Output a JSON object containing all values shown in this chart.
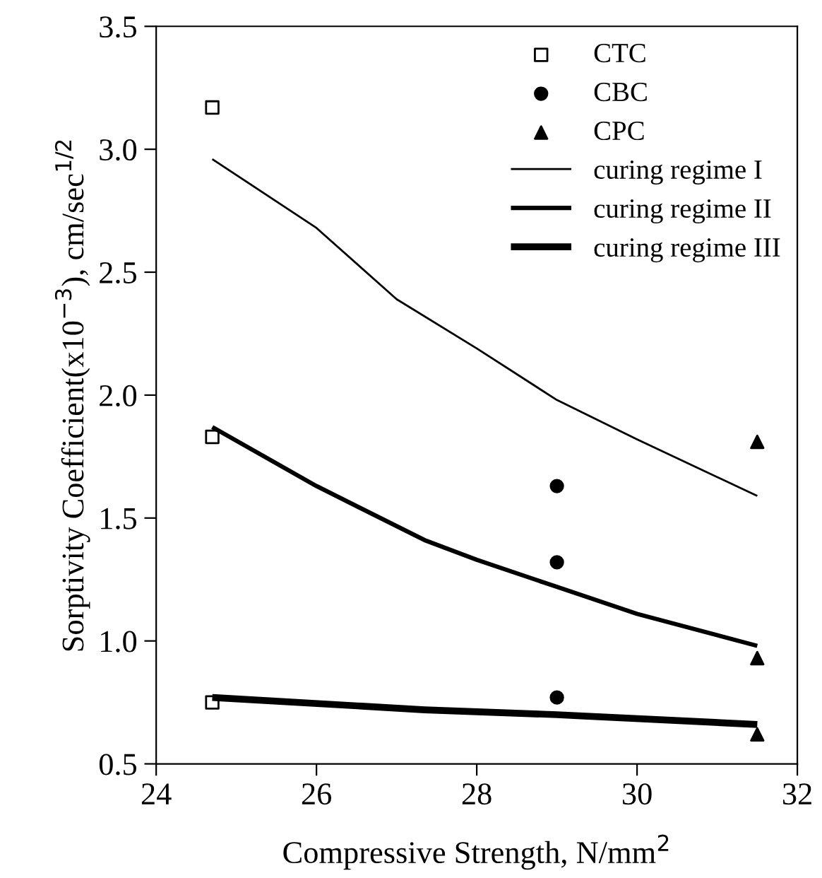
{
  "chart_data": {
    "type": "scatter",
    "xlabel": "Compressive Strength, N/mm$^{2}$",
    "ylabel": "Sorptivity Coefficient(x10$^{−3}$), cm/sec$^{1/2}$",
    "xlim": [
      24,
      32
    ],
    "ylim": [
      0.5,
      3.5
    ],
    "xticks": [
      24,
      26,
      28,
      30,
      32
    ],
    "yticks": [
      {
        "value": 0.5,
        "label": "0.5"
      },
      {
        "value": 1.0,
        "label": "1.0"
      },
      {
        "value": 1.5,
        "label": "1.5"
      },
      {
        "value": 2.0,
        "label": "2.0"
      },
      {
        "value": 2.5,
        "label": "2.5"
      },
      {
        "value": 3.0,
        "label": "3.0"
      },
      {
        "value": 3.5,
        "label": "3.5"
      }
    ],
    "grid": false,
    "legend": "top right",
    "series": [
      {
        "name": "CTC",
        "marker": "square",
        "color": "#000000",
        "x": [
          24.7,
          24.7,
          24.7
        ],
        "values": [
          3.17,
          1.83,
          0.75
        ]
      },
      {
        "name": "CBC",
        "marker": "circle",
        "color": "#000000",
        "x": [
          29.0,
          29.0,
          29.0
        ],
        "values": [
          1.63,
          1.32,
          0.77
        ]
      },
      {
        "name": "CPC",
        "marker": "triangle",
        "color": "#000000",
        "x": [
          31.5,
          31.5,
          31.5
        ],
        "values": [
          1.81,
          0.93,
          0.62
        ]
      },
      {
        "name": "curing regime I",
        "type": "line",
        "color": "#000000",
        "x": [
          24.7,
          26,
          27,
          28,
          29,
          30,
          31.5
        ],
        "values": [
          2.96,
          2.68,
          2.39,
          2.19,
          1.98,
          1.82,
          1.59
        ]
      },
      {
        "name": "curing regime II",
        "type": "line",
        "color": "#000000",
        "x": [
          24.7,
          26,
          27.35,
          28,
          29,
          30,
          31.5
        ],
        "values": [
          1.87,
          1.63,
          1.41,
          1.33,
          1.22,
          1.11,
          0.98
        ]
      },
      {
        "name": "curing regime III",
        "type": "line",
        "color": "#000000",
        "x": [
          24.7,
          27.35,
          29,
          31.5
        ],
        "values": [
          0.77,
          0.72,
          0.7,
          0.66
        ]
      }
    ]
  }
}
